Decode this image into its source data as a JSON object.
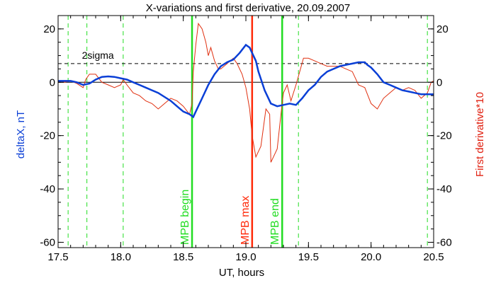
{
  "chart_data": {
    "type": "line",
    "title": "X-variations and first derivative, 20.09.2007",
    "xlabel": "UT, hours",
    "ylabel_left": "deltaX, nT",
    "ylabel_right": "First derivative*10",
    "xlim": [
      17.5,
      20.5
    ],
    "ylim_left": [
      -62,
      25
    ],
    "ylim_right": [
      -62,
      25
    ],
    "x_ticks": [
      "17.5",
      "18.0",
      "18.5",
      "19.0",
      "19.5",
      "20.0",
      "20.5"
    ],
    "x_tick_values": [
      17.5,
      18.0,
      18.5,
      19.0,
      19.5,
      20.0,
      20.5
    ],
    "y_ticks": [
      "20",
      "0",
      "-20",
      "-40",
      "-60"
    ],
    "y_tick_values": [
      20,
      0,
      -20,
      -40,
      -60
    ],
    "sigma_label": "2sigma",
    "sigma_level": 7,
    "grid": false,
    "colors": {
      "deltaX": "#0a3fd6",
      "derivative": "#e03010",
      "mpb_edges": "#22dd22",
      "mpb_max": "#ff2a0a",
      "dashed": "#22dd22",
      "axis": "#000000",
      "right_label": "#e02010"
    },
    "vertical_markers": [
      {
        "label": "MPB begin",
        "x": 18.57,
        "color": "#22dd22"
      },
      {
        "label": "MPB max",
        "x": 19.05,
        "color": "#ff2a0a"
      },
      {
        "label": "MPB end",
        "x": 19.29,
        "color": "#22dd22"
      }
    ],
    "dashed_verticals": [
      17.58,
      17.73,
      18.02,
      19.42,
      20.45
    ],
    "series": [
      {
        "name": "deltaX",
        "axis": "left",
        "x": [
          17.5,
          17.55,
          17.6,
          17.65,
          17.7,
          17.75,
          17.8,
          17.85,
          17.9,
          17.95,
          18.0,
          18.05,
          18.1,
          18.15,
          18.2,
          18.25,
          18.3,
          18.35,
          18.4,
          18.45,
          18.5,
          18.55,
          18.58,
          18.6,
          18.65,
          18.7,
          18.75,
          18.8,
          18.85,
          18.9,
          18.95,
          19.0,
          19.03,
          19.05,
          19.08,
          19.1,
          19.15,
          19.2,
          19.25,
          19.3,
          19.35,
          19.4,
          19.45,
          19.5,
          19.55,
          19.6,
          19.65,
          19.7,
          19.75,
          19.8,
          19.85,
          19.9,
          19.95,
          19.97,
          20.0,
          20.05,
          20.1,
          20.15,
          20.2,
          20.25,
          20.3,
          20.35,
          20.4,
          20.45,
          20.5
        ],
        "y": [
          0.5,
          0.5,
          0.5,
          0,
          -1,
          -0.5,
          1,
          2,
          2.2,
          2,
          1.5,
          1,
          0,
          -1,
          -2,
          -3,
          -4,
          -5.5,
          -7,
          -9,
          -11,
          -12,
          -13,
          -11,
          -6,
          -1,
          3,
          6,
          7.5,
          8.5,
          11,
          14,
          13,
          11,
          8,
          4,
          -3,
          -8,
          -9,
          -8.5,
          -8,
          -8.5,
          -6,
          -3,
          -1,
          2,
          4,
          5,
          6,
          6.5,
          7,
          7.5,
          7.5,
          6.5,
          5.5,
          3,
          0,
          -1,
          -2,
          -3,
          -3.5,
          -4,
          -4.5,
          -4.5,
          -4.5
        ]
      },
      {
        "name": "First derivative*10",
        "axis": "right",
        "x": [
          17.5,
          17.55,
          17.6,
          17.65,
          17.7,
          17.72,
          17.75,
          17.8,
          17.85,
          17.9,
          17.95,
          18.0,
          18.02,
          18.05,
          18.1,
          18.15,
          18.2,
          18.25,
          18.3,
          18.35,
          18.4,
          18.45,
          18.5,
          18.55,
          18.57,
          18.58,
          18.6,
          18.62,
          18.65,
          18.68,
          18.7,
          18.72,
          18.75,
          18.78,
          18.8,
          18.85,
          18.9,
          18.93,
          18.97,
          19.0,
          19.03,
          19.05,
          19.08,
          19.12,
          19.16,
          19.19,
          19.2,
          19.22,
          19.25,
          19.28,
          19.3,
          19.33,
          19.36,
          19.4,
          19.43,
          19.46,
          19.5,
          19.55,
          19.6,
          19.65,
          19.7,
          19.75,
          19.8,
          19.85,
          19.9,
          19.95,
          20.0,
          20.05,
          20.1,
          20.15,
          20.2,
          20.25,
          20.3,
          20.35,
          20.4,
          20.45,
          20.48,
          20.5
        ],
        "y": [
          0,
          0,
          0.5,
          -0.5,
          -2,
          1,
          3,
          3,
          0,
          -1,
          -2,
          -1,
          1,
          -1,
          -4,
          -5,
          -7,
          -8,
          -10,
          -8,
          -6,
          -7,
          -9,
          -12,
          -8,
          4,
          14,
          22,
          20,
          15,
          10,
          13,
          8,
          5,
          5,
          7,
          9,
          7,
          3,
          -2,
          -10,
          -20,
          -28,
          -24,
          -10,
          -12,
          -30,
          -28,
          -25,
          -12,
          -4,
          -1,
          -7,
          -1,
          4,
          9,
          9,
          8,
          7,
          6,
          6,
          6,
          5,
          4,
          -1,
          -2,
          -8,
          -10,
          -6,
          -4,
          -2,
          -3,
          -2,
          -3,
          -6,
          -4,
          0,
          0.5
        ]
      }
    ]
  }
}
